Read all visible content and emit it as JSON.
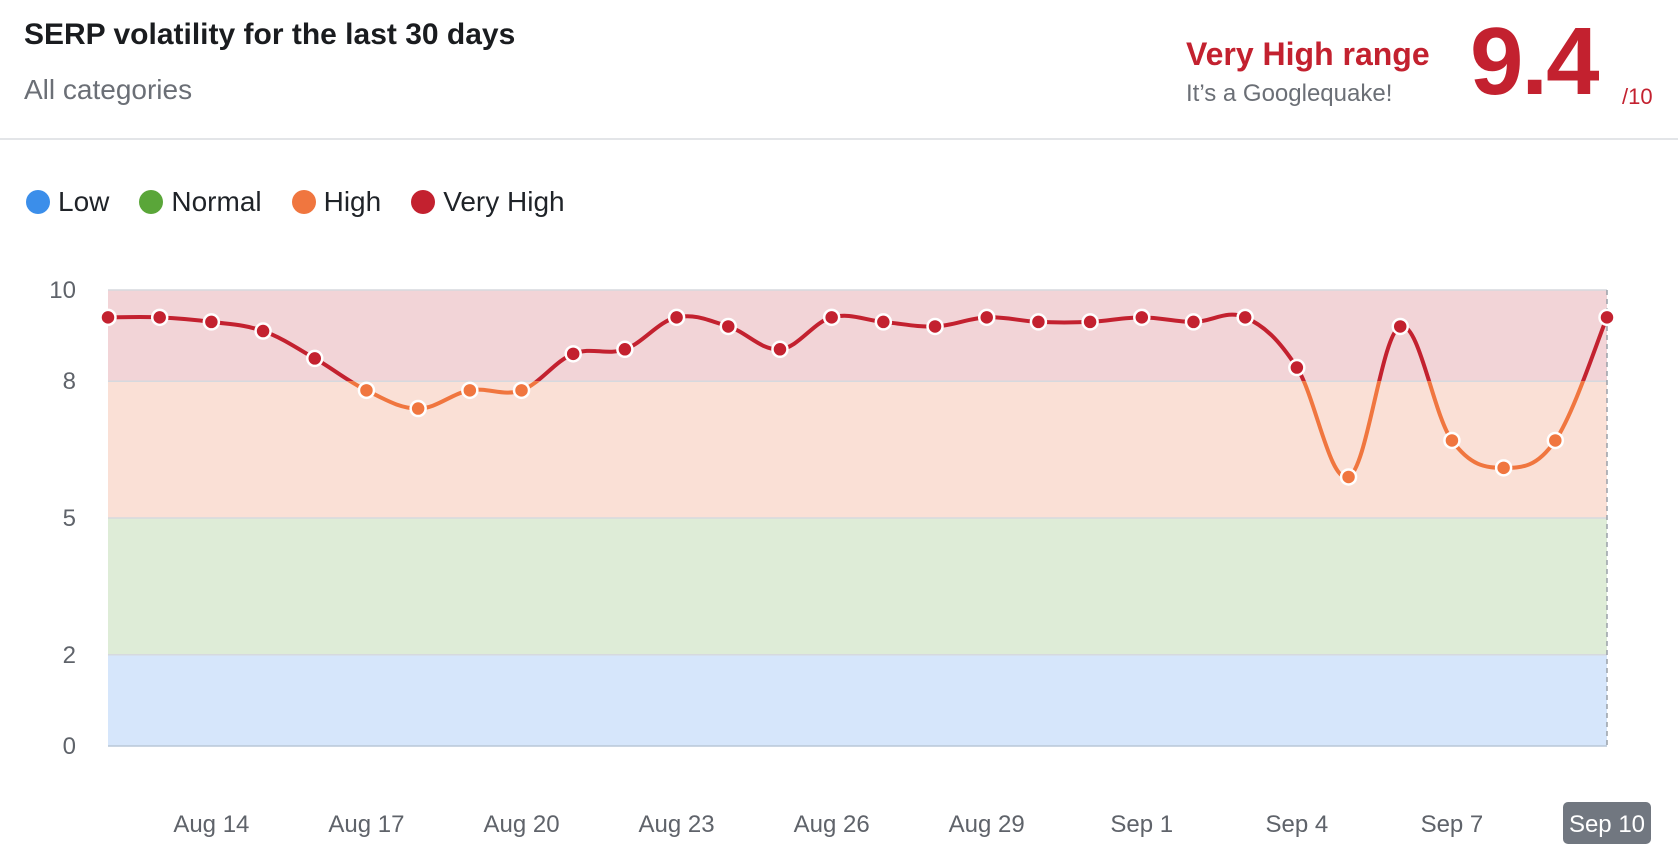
{
  "header": {
    "title": "SERP volatility for the last 30 days",
    "subtitle": "All categories",
    "range_label": "Very High range",
    "range_note": "It’s a Googlequake!",
    "score": "9.4",
    "score_max": "/10"
  },
  "legend": [
    {
      "label": "Low",
      "color": "#3b8eea"
    },
    {
      "label": "Normal",
      "color": "#5aa639"
    },
    {
      "label": "High",
      "color": "#f0763f"
    },
    {
      "label": "Very High",
      "color": "#c3212f"
    }
  ],
  "chart_data": {
    "type": "line",
    "y_ticks": [
      0,
      2,
      5,
      8,
      10
    ],
    "ylim": [
      0,
      10
    ],
    "x_tick_labels": [
      "Aug 14",
      "Aug 17",
      "Aug 20",
      "Aug 23",
      "Aug 26",
      "Aug 29",
      "Sep 1",
      "Sep 4",
      "Sep 7",
      "Sep 10"
    ],
    "x_tick_dates": [
      "Aug 14",
      "Aug 17",
      "Aug 20",
      "Aug 23",
      "Aug 26",
      "Aug 29",
      "Sep 1",
      "Sep 4",
      "Sep 7",
      "Sep 10"
    ],
    "highlighted_date": "Sep 10",
    "bands": [
      {
        "name": "Low",
        "from": 0,
        "to": 2,
        "color": "#d6e6fb"
      },
      {
        "name": "Normal",
        "from": 2,
        "to": 5,
        "color": "#deecd7"
      },
      {
        "name": "High",
        "from": 5,
        "to": 8,
        "color": "#fae0d6"
      },
      {
        "name": "Very High",
        "from": 8,
        "to": 10,
        "color": "#f2d4d7"
      }
    ],
    "series": [
      {
        "dates": [
          "Aug 12",
          "Aug 13",
          "Aug 14",
          "Aug 15",
          "Aug 16",
          "Aug 17",
          "Aug 18",
          "Aug 19",
          "Aug 20",
          "Aug 21",
          "Aug 22",
          "Aug 23",
          "Aug 24",
          "Aug 25",
          "Aug 26",
          "Aug 27",
          "Aug 28",
          "Aug 29",
          "Aug 30",
          "Aug 31",
          "Sep 1",
          "Sep 2",
          "Sep 3",
          "Sep 4",
          "Sep 5",
          "Sep 6",
          "Sep 7",
          "Sep 8",
          "Sep 9",
          "Sep 10"
        ],
        "values": [
          9.4,
          9.4,
          9.3,
          9.1,
          8.5,
          7.8,
          7.4,
          7.8,
          7.8,
          8.6,
          8.7,
          9.4,
          9.2,
          8.7,
          9.4,
          9.3,
          9.2,
          9.4,
          9.3,
          9.3,
          9.4,
          9.3,
          9.4,
          8.3,
          5.9,
          9.2,
          6.7,
          6.1,
          6.7,
          9.4
        ]
      }
    ],
    "colors": {
      "very_high": "#c3212f",
      "high": "#f0763f"
    }
  }
}
